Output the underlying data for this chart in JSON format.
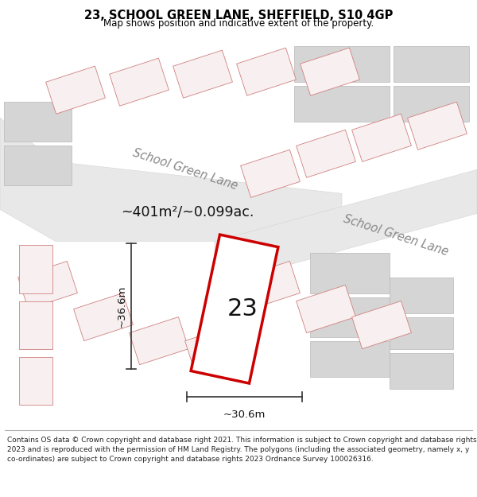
{
  "title": "23, SCHOOL GREEN LANE, SHEFFIELD, S10 4GP",
  "subtitle": "Map shows position and indicative extent of the property.",
  "footer": "Contains OS data © Crown copyright and database right 2021. This information is subject to Crown copyright and database rights 2023 and is reproduced with the permission of HM Land Registry. The polygons (including the associated geometry, namely x, y co-ordinates) are subject to Crown copyright and database rights 2023 Ordnance Survey 100026316.",
  "road_label1": "School Green Lane",
  "road_label2": "School Green Lane",
  "area_label": "~401m²/~0.099ac.",
  "plot_label": "23",
  "dim_width": "~30.6m",
  "dim_height": "~36.6m",
  "bg_color": "#f0f0f0",
  "road_color": "#e8e8e8",
  "building_color": "#d5d5d5",
  "red_plot_border": "#cc0000",
  "red_plot_light": "#f5c0c0",
  "white": "#ffffff"
}
